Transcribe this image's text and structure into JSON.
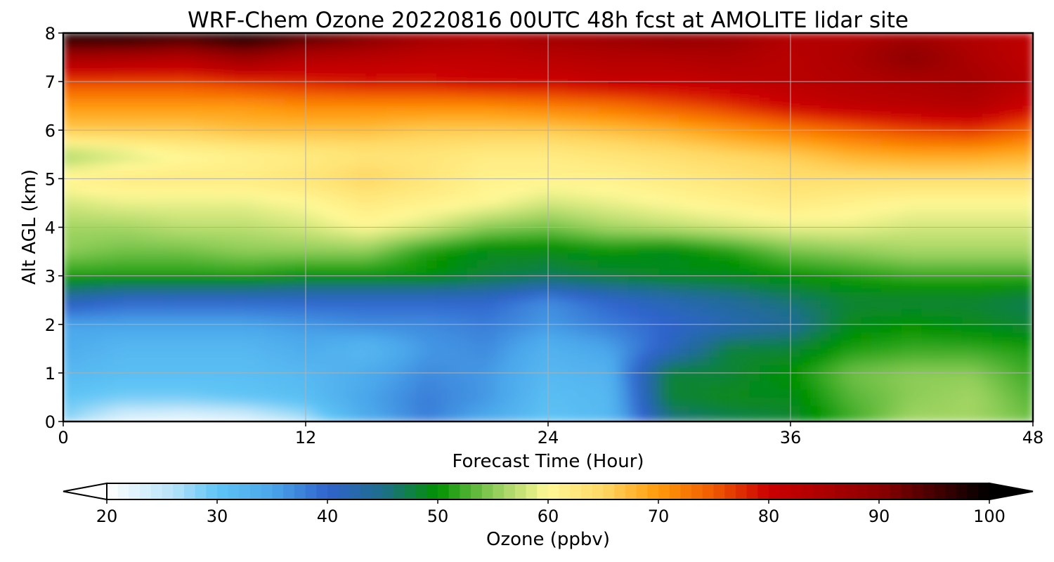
{
  "chart_data": {
    "type": "heatmap",
    "title": "WRF-Chem Ozone  20220816 00UTC 48h fcst at AMOLITE lidar site",
    "xlabel": "Forecast Time (Hour)",
    "ylabel": "Alt AGL (km)",
    "xlim": [
      0,
      48
    ],
    "ylim": [
      0,
      8
    ],
    "xticks": [
      0,
      12,
      24,
      36,
      48
    ],
    "yticks": [
      0,
      1,
      2,
      3,
      4,
      5,
      6,
      7,
      8
    ],
    "grid": true,
    "x": [
      0,
      3,
      6,
      9,
      12,
      15,
      18,
      21,
      24,
      27,
      30,
      33,
      36,
      39,
      42,
      45,
      48
    ],
    "y": [
      0,
      0.5,
      1,
      1.5,
      2,
      2.5,
      3,
      3.5,
      4,
      4.5,
      5,
      5.5,
      6,
      6.5,
      7,
      7.5,
      8
    ],
    "z": [
      [
        28,
        22,
        21,
        22,
        26,
        34,
        38,
        34,
        30,
        32,
        45,
        47,
        48,
        52,
        56,
        56,
        54
      ],
      [
        30,
        29,
        29,
        30,
        31,
        35,
        38,
        36,
        31,
        32,
        48,
        49,
        49,
        53,
        55,
        56,
        53
      ],
      [
        32,
        31,
        31,
        31,
        32,
        34,
        37,
        36,
        32,
        33,
        48,
        48,
        50,
        54,
        55,
        55,
        52
      ],
      [
        34,
        32,
        32,
        32,
        34,
        32,
        36,
        37,
        33,
        35,
        41,
        48,
        48,
        51,
        52,
        52,
        51
      ],
      [
        35,
        35,
        35,
        35,
        36,
        37,
        37,
        38,
        36,
        38,
        40,
        42,
        44,
        49,
        50,
        49,
        48
      ],
      [
        42,
        40,
        40,
        40,
        40,
        40,
        40,
        40,
        37,
        40,
        42,
        44,
        46,
        48,
        48,
        48,
        47
      ],
      [
        51,
        51,
        51,
        51,
        50,
        50,
        50,
        48,
        47,
        48,
        49,
        49,
        50,
        51,
        52,
        52,
        52
      ],
      [
        55,
        54,
        54,
        55,
        55,
        55,
        51,
        49,
        49,
        50,
        49,
        51,
        54,
        55,
        56,
        56,
        56
      ],
      [
        56,
        56,
        57,
        57,
        58,
        60,
        58,
        55,
        54,
        56,
        57,
        58,
        59,
        59,
        58,
        58,
        58
      ],
      [
        58,
        59,
        59,
        59,
        60,
        62,
        61,
        60,
        58,
        59,
        60,
        61,
        62,
        61,
        60,
        60,
        60
      ],
      [
        61,
        62,
        62,
        62,
        63,
        65,
        63,
        61,
        61,
        61,
        62,
        63,
        64,
        64,
        64,
        64,
        64
      ],
      [
        56,
        58,
        60,
        61,
        62,
        63,
        63,
        62,
        62,
        63,
        64,
        65,
        66,
        68,
        69,
        69,
        68
      ],
      [
        66,
        66,
        66,
        67,
        67,
        67,
        66,
        66,
        66,
        67,
        68,
        70,
        72,
        74,
        76,
        77,
        74
      ],
      [
        70,
        70,
        70,
        70,
        71,
        71,
        71,
        71,
        72,
        73,
        75,
        77,
        80,
        82,
        83,
        84,
        80
      ],
      [
        76,
        76,
        76,
        77,
        78,
        79,
        79,
        80,
        80,
        81,
        81,
        82,
        83,
        84,
        85,
        86,
        83
      ],
      [
        86,
        85,
        84,
        88,
        84,
        83,
        82,
        82,
        83,
        84,
        84,
        85,
        83,
        85,
        90,
        85,
        82
      ],
      [
        100,
        100,
        98,
        100,
        96,
        92,
        87,
        85,
        87,
        88,
        90,
        88,
        84,
        84,
        86,
        84,
        82
      ]
    ],
    "colorbar": {
      "label": "Ozone  (ppbv)",
      "min": 20,
      "max": 100,
      "ticks": [
        20,
        30,
        40,
        50,
        60,
        70,
        80,
        90,
        100
      ],
      "extend": "both",
      "stops": [
        {
          "v": 20,
          "c": "#ffffff"
        },
        {
          "v": 26,
          "c": "#b7e3f8"
        },
        {
          "v": 30,
          "c": "#5ec4f5"
        },
        {
          "v": 35,
          "c": "#4aa6ea"
        },
        {
          "v": 40,
          "c": "#2f63cc"
        },
        {
          "v": 45,
          "c": "#1e6e8c"
        },
        {
          "v": 50,
          "c": "#009100"
        },
        {
          "v": 55,
          "c": "#8ccc57"
        },
        {
          "v": 60,
          "c": "#fff896"
        },
        {
          "v": 65,
          "c": "#ffd864"
        },
        {
          "v": 70,
          "c": "#ff9a0a"
        },
        {
          "v": 75,
          "c": "#f05a00"
        },
        {
          "v": 80,
          "c": "#cc0000"
        },
        {
          "v": 90,
          "c": "#8c0000"
        },
        {
          "v": 100,
          "c": "#000000"
        }
      ]
    }
  }
}
